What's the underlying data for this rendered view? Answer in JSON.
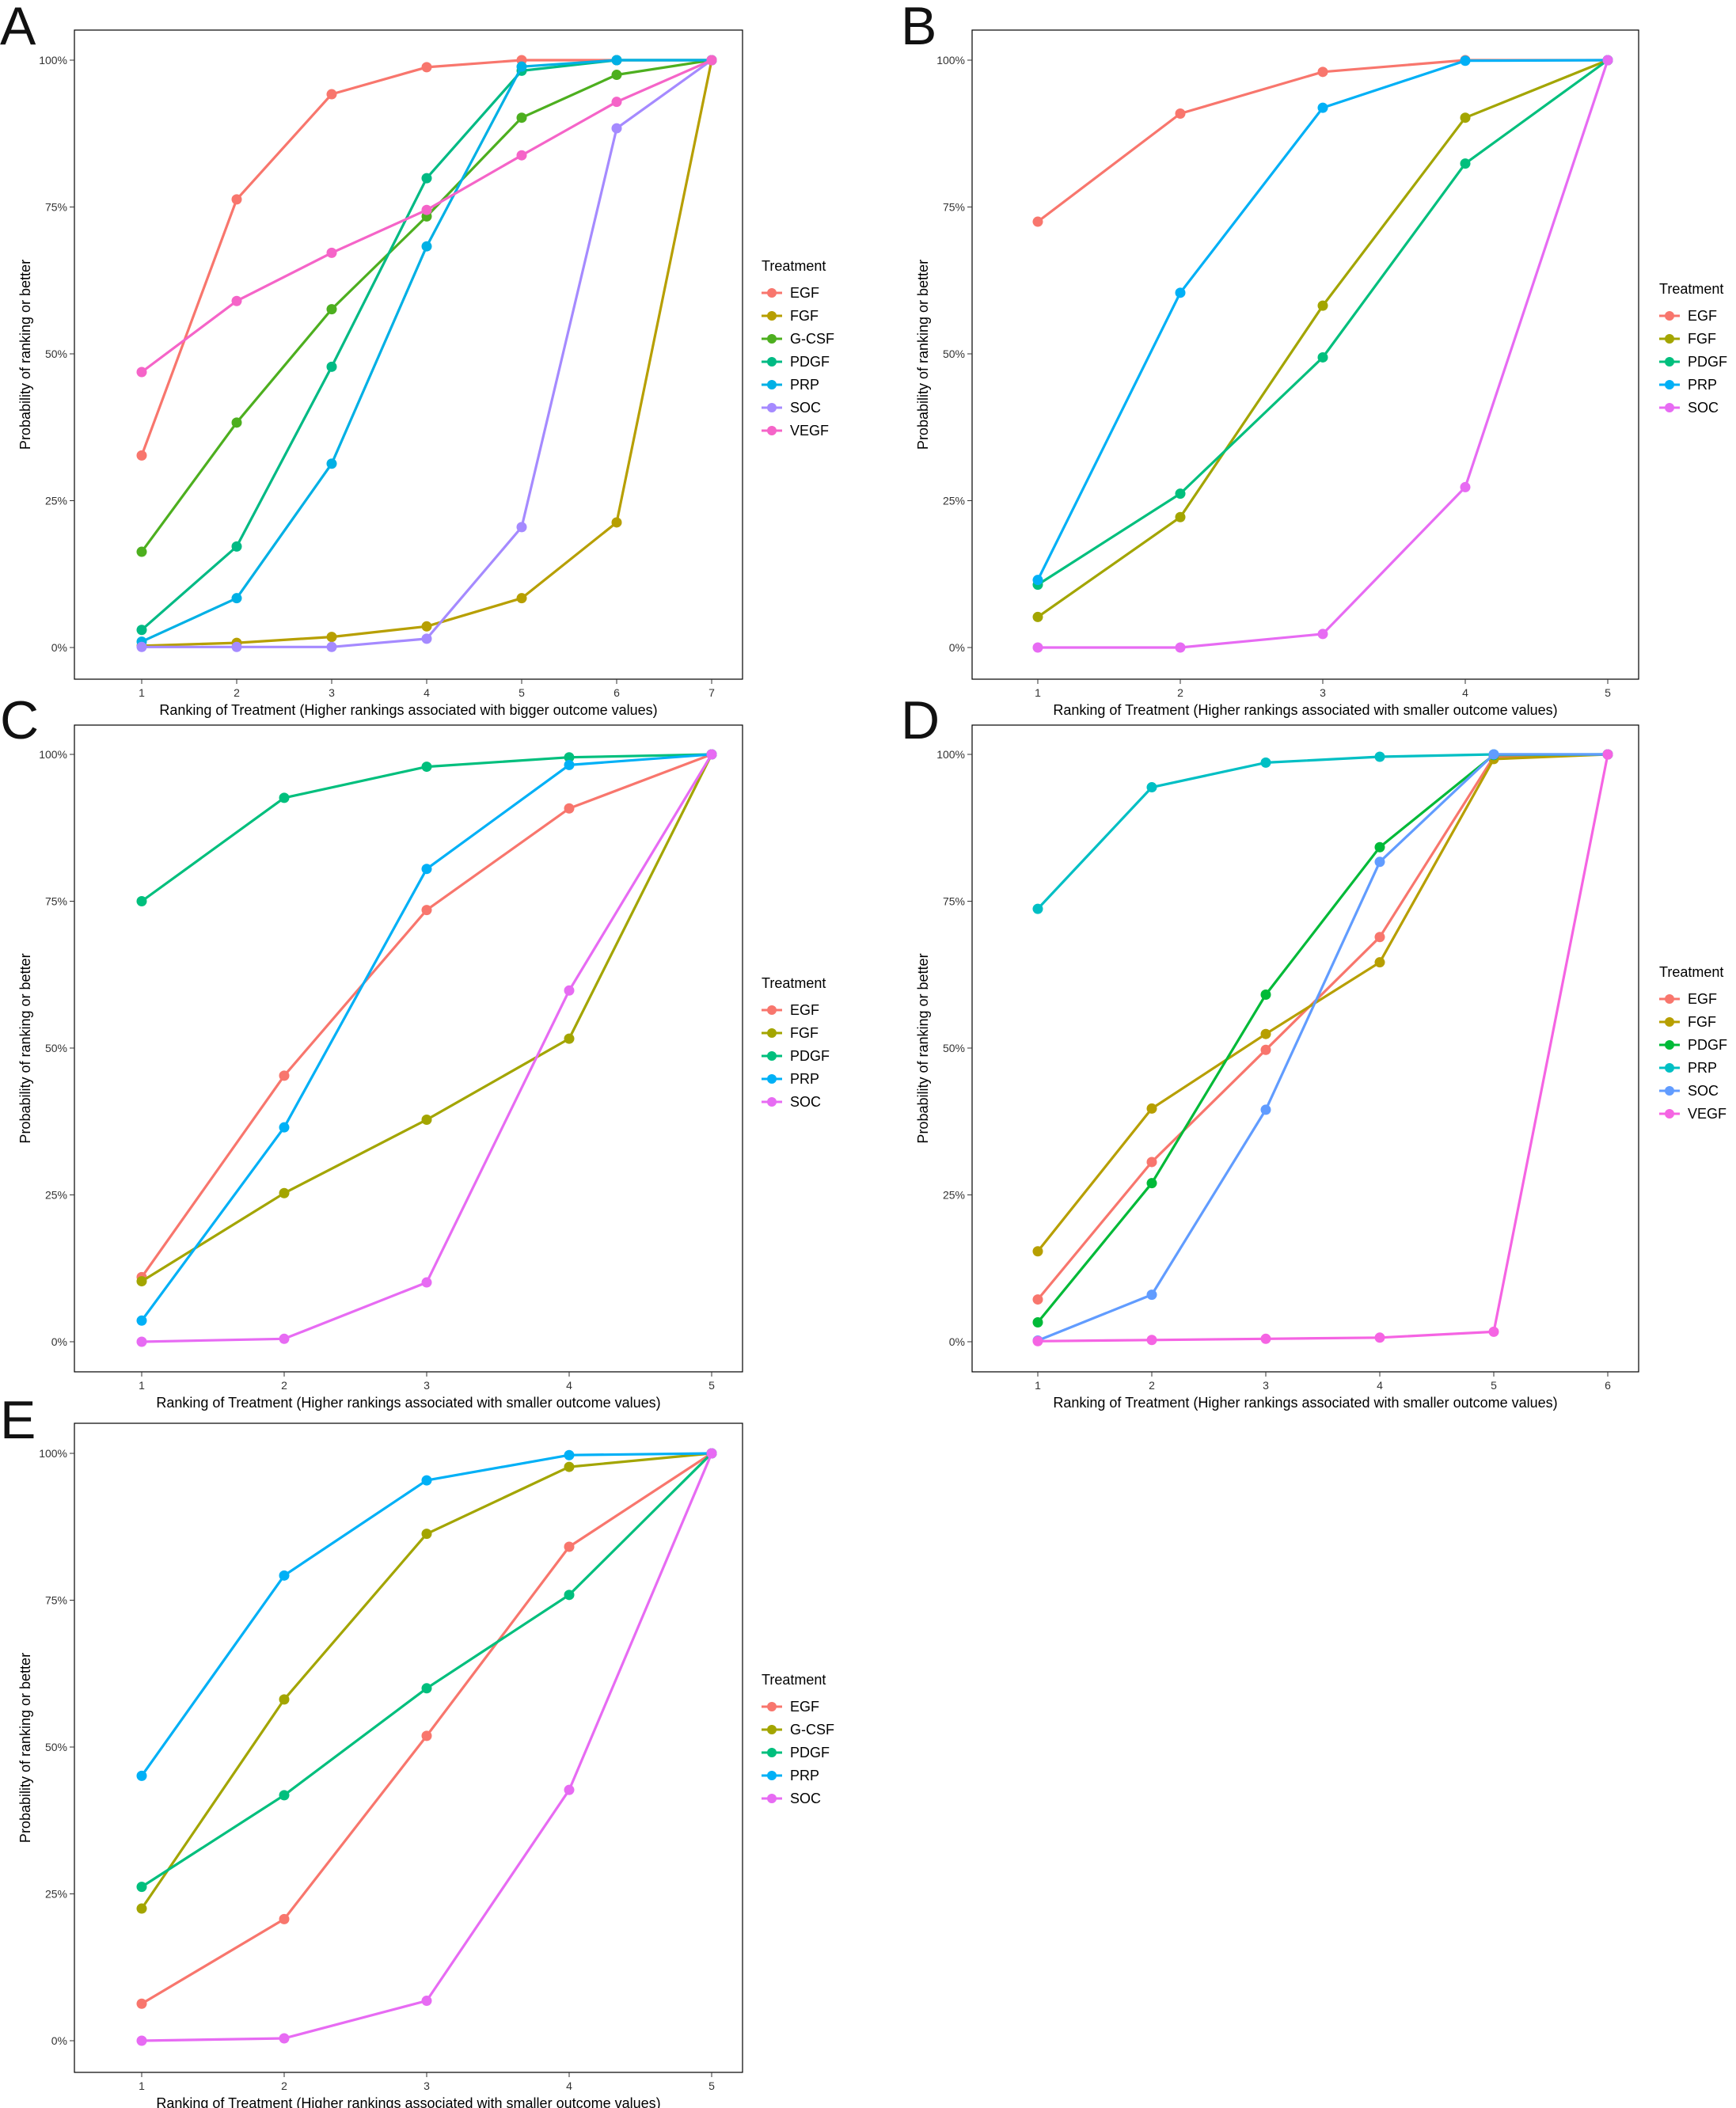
{
  "chart_data": [
    {
      "panel": "A",
      "type": "line",
      "xlabel": "Ranking of Treatment (Higher rankings associated with bigger outcome values)",
      "ylabel": "Probability of ranking or better",
      "x": [
        1,
        2,
        3,
        4,
        5,
        6,
        7
      ],
      "x_tick_labels": [
        "1",
        "2",
        "3",
        "4",
        "5",
        "6",
        "7"
      ],
      "ylim": [
        0,
        100
      ],
      "y_ticks": [
        0,
        25,
        50,
        75,
        100
      ],
      "y_tick_labels": [
        "0%",
        "25%",
        "50%",
        "75%",
        "100%"
      ],
      "legend_title": "Treatment",
      "series": [
        {
          "name": "EGF",
          "color": "#F8766D",
          "values": [
            32.7,
            76.3,
            94.2,
            98.8,
            100,
            100,
            100
          ]
        },
        {
          "name": "FGF",
          "color": "#B79F00",
          "values": [
            0.3,
            0.8,
            1.8,
            3.6,
            8.4,
            21.3,
            100
          ]
        },
        {
          "name": "G-CSF",
          "color": "#4DAF1F",
          "values": [
            16.3,
            38.3,
            57.6,
            73.4,
            90.2,
            97.5,
            100
          ]
        },
        {
          "name": "PDGF",
          "color": "#00BA84",
          "values": [
            3.0,
            17.2,
            47.8,
            79.9,
            98.2,
            100,
            100
          ]
        },
        {
          "name": "PRP",
          "color": "#00B0E5",
          "values": [
            1.0,
            8.4,
            31.3,
            68.3,
            98.9,
            100,
            100
          ]
        },
        {
          "name": "SOC",
          "color": "#A58AFF",
          "values": [
            0.1,
            0.1,
            0.1,
            1.5,
            20.5,
            88.4,
            100
          ]
        },
        {
          "name": "VEGF",
          "color": "#F564C8",
          "values": [
            46.9,
            59.0,
            67.2,
            74.5,
            83.8,
            92.9,
            100
          ]
        }
      ]
    },
    {
      "panel": "B",
      "type": "line",
      "xlabel": "Ranking of Treatment (Higher rankings associated with smaller outcome values)",
      "ylabel": "Probability of ranking or better",
      "x": [
        1,
        2,
        3,
        4,
        5
      ],
      "x_tick_labels": [
        "1",
        "2",
        "3",
        "4",
        "5"
      ],
      "ylim": [
        0,
        100
      ],
      "y_ticks": [
        0,
        25,
        50,
        75,
        100
      ],
      "y_tick_labels": [
        "0%",
        "25%",
        "50%",
        "75%",
        "100%"
      ],
      "legend_title": "Treatment",
      "series": [
        {
          "name": "EGF",
          "color": "#F8766D",
          "values": [
            72.5,
            90.9,
            98.0,
            100,
            100
          ]
        },
        {
          "name": "FGF",
          "color": "#A3A500",
          "values": [
            5.2,
            22.2,
            58.2,
            90.2,
            100
          ]
        },
        {
          "name": "PDGF",
          "color": "#00BF7D",
          "values": [
            10.7,
            26.2,
            49.4,
            82.4,
            100
          ]
        },
        {
          "name": "PRP",
          "color": "#00B0F6",
          "values": [
            11.5,
            60.4,
            91.9,
            99.9,
            100
          ]
        },
        {
          "name": "SOC",
          "color": "#E76BF3",
          "values": [
            0.0,
            0.0,
            2.3,
            27.3,
            100
          ]
        }
      ]
    },
    {
      "panel": "C",
      "type": "line",
      "xlabel": "Ranking of Treatment (Higher rankings associated with smaller outcome values)",
      "ylabel": "Probability of ranking or better",
      "x": [
        1,
        2,
        3,
        4,
        5
      ],
      "x_tick_labels": [
        "1",
        "2",
        "3",
        "4",
        "5"
      ],
      "ylim": [
        0,
        100
      ],
      "y_ticks": [
        0,
        25,
        50,
        75,
        100
      ],
      "y_tick_labels": [
        "0%",
        "25%",
        "50%",
        "75%",
        "100%"
      ],
      "legend_title": "Treatment",
      "series": [
        {
          "name": "EGF",
          "color": "#F8766D",
          "values": [
            11.0,
            45.3,
            73.5,
            90.8,
            100
          ]
        },
        {
          "name": "FGF",
          "color": "#A3A500",
          "values": [
            10.3,
            25.3,
            37.8,
            51.6,
            100
          ]
        },
        {
          "name": "PDGF",
          "color": "#00BF7D",
          "values": [
            75.0,
            92.6,
            97.9,
            99.5,
            100
          ]
        },
        {
          "name": "PRP",
          "color": "#00B0F6",
          "values": [
            3.6,
            36.5,
            80.5,
            98.2,
            100
          ]
        },
        {
          "name": "SOC",
          "color": "#E76BF3",
          "values": [
            0.0,
            0.5,
            10.1,
            59.8,
            100
          ]
        }
      ]
    },
    {
      "panel": "D",
      "type": "line",
      "xlabel": "Ranking of Treatment (Higher rankings associated with smaller outcome values)",
      "ylabel": "Probability of ranking or better",
      "x": [
        1,
        2,
        3,
        4,
        5,
        6
      ],
      "x_tick_labels": [
        "1",
        "2",
        "3",
        "4",
        "5",
        "6"
      ],
      "ylim": [
        0,
        100
      ],
      "y_ticks": [
        0,
        25,
        50,
        75,
        100
      ],
      "y_tick_labels": [
        "0%",
        "25%",
        "50%",
        "75%",
        "100%"
      ],
      "legend_title": "Treatment",
      "series": [
        {
          "name": "EGF",
          "color": "#F8766D",
          "values": [
            7.2,
            30.6,
            49.7,
            68.9,
            99.6,
            100
          ]
        },
        {
          "name": "FGF",
          "color": "#B79F00",
          "values": [
            15.4,
            39.7,
            52.4,
            64.6,
            99.2,
            100
          ]
        },
        {
          "name": "PDGF",
          "color": "#00BA38",
          "values": [
            3.3,
            27.0,
            59.1,
            84.2,
            99.9,
            100
          ]
        },
        {
          "name": "PRP",
          "color": "#00BFC4",
          "values": [
            73.7,
            94.4,
            98.6,
            99.6,
            100,
            100
          ]
        },
        {
          "name": "SOC",
          "color": "#619CFF",
          "values": [
            0.2,
            8.0,
            39.5,
            81.7,
            100,
            100
          ]
        },
        {
          "name": "VEGF",
          "color": "#F564E3",
          "values": [
            0.1,
            0.3,
            0.5,
            0.7,
            1.7,
            100
          ]
        }
      ]
    },
    {
      "panel": "E",
      "type": "line",
      "xlabel": "Ranking of Treatment (Higher rankings associated with smaller outcome values)",
      "ylabel": "Probability of ranking or better",
      "x": [
        1,
        2,
        3,
        4,
        5
      ],
      "x_tick_labels": [
        "1",
        "2",
        "3",
        "4",
        "5"
      ],
      "ylim": [
        0,
        100
      ],
      "y_ticks": [
        0,
        25,
        50,
        75,
        100
      ],
      "y_tick_labels": [
        "0%",
        "25%",
        "50%",
        "75%",
        "100%"
      ],
      "legend_title": "Treatment",
      "series": [
        {
          "name": "EGF",
          "color": "#F8766D",
          "values": [
            6.3,
            20.7,
            51.9,
            84.1,
            100
          ]
        },
        {
          "name": "G-CSF",
          "color": "#A3A500",
          "values": [
            22.5,
            58.1,
            86.3,
            97.7,
            100
          ]
        },
        {
          "name": "PDGF",
          "color": "#00BF7D",
          "values": [
            26.2,
            41.8,
            60.0,
            75.9,
            100
          ]
        },
        {
          "name": "PRP",
          "color": "#00B0F6",
          "values": [
            45.1,
            79.2,
            95.4,
            99.7,
            100
          ]
        },
        {
          "name": "SOC",
          "color": "#E76BF3",
          "values": [
            0.0,
            0.4,
            6.8,
            42.7,
            100
          ]
        }
      ]
    }
  ]
}
